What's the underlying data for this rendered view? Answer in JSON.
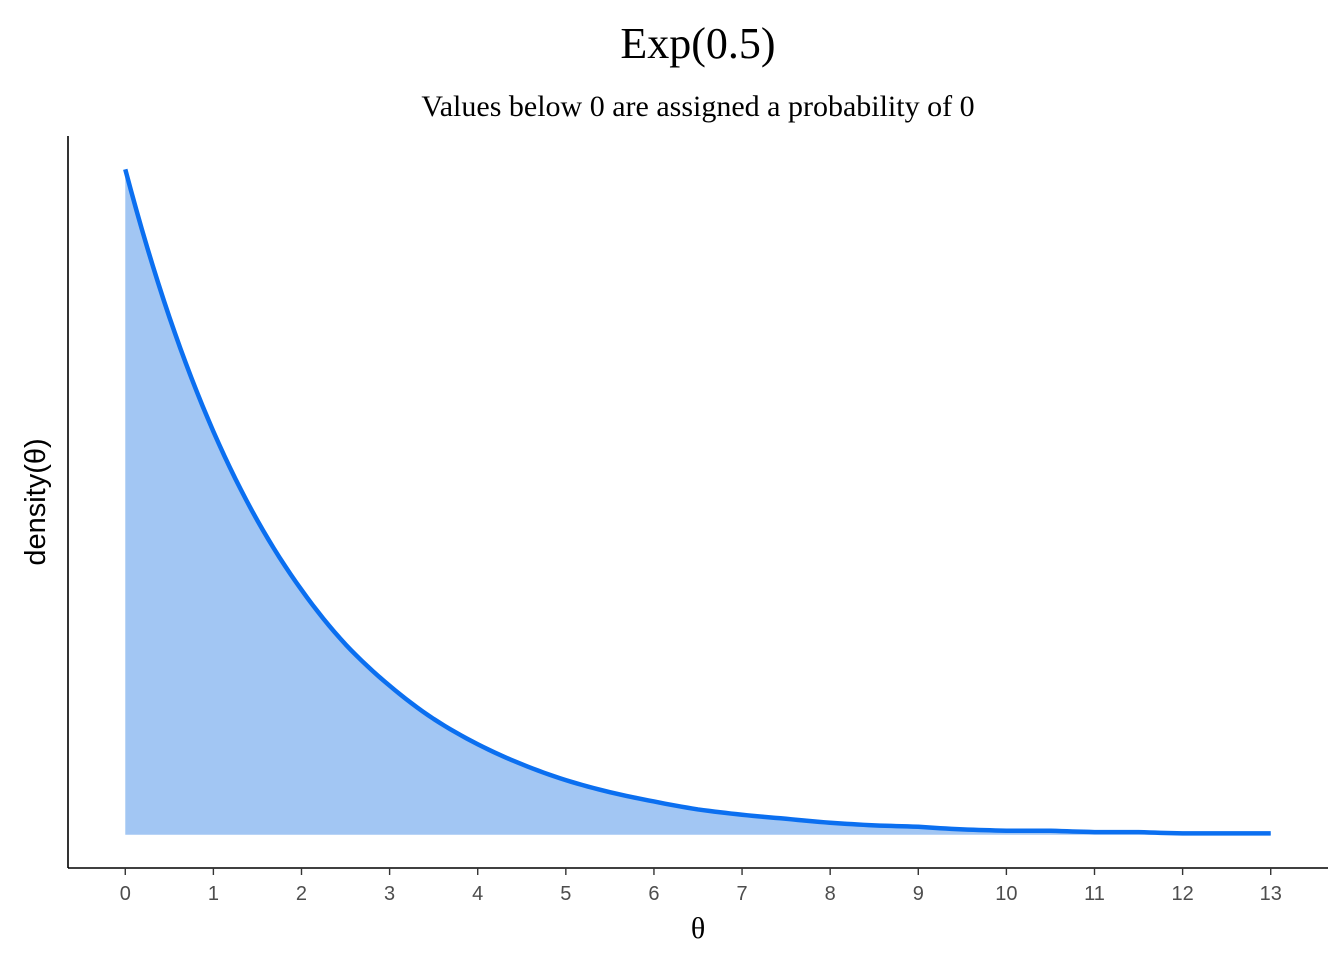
{
  "chart_data": {
    "type": "area",
    "title": "Exp(0.5)",
    "subtitle": "Values below 0 are assigned a probability of 0",
    "xlabel": "θ",
    "ylabel": "density(θ)",
    "xlim": [
      -0.65,
      13.65
    ],
    "ylim": [
      -0.025,
      0.525
    ],
    "x_ticks": [
      0,
      1,
      2,
      3,
      4,
      5,
      6,
      7,
      8,
      9,
      10,
      11,
      12,
      13
    ],
    "y_ticks_shown": false,
    "grid": false,
    "rate": 0.5,
    "series": [
      {
        "x": [
          0,
          0.5,
          1,
          1.5,
          2,
          2.5,
          3,
          3.5,
          4,
          4.5,
          5,
          5.5,
          6,
          6.5,
          7,
          7.5,
          8,
          8.5,
          9,
          9.5,
          10,
          10.5,
          11,
          11.5,
          12,
          12.5,
          13
        ],
        "y": [
          0.5,
          0.389,
          0.303,
          0.236,
          0.184,
          0.143,
          0.112,
          0.087,
          0.068,
          0.053,
          0.041,
          0.032,
          0.025,
          0.019,
          0.015,
          0.012,
          0.009,
          0.007,
          0.006,
          0.004,
          0.003,
          0.003,
          0.002,
          0.002,
          0.001,
          0.001,
          0.001
        ]
      }
    ],
    "colors": {
      "line": "#0B6FF0",
      "fill": "#A2C6F3"
    }
  }
}
